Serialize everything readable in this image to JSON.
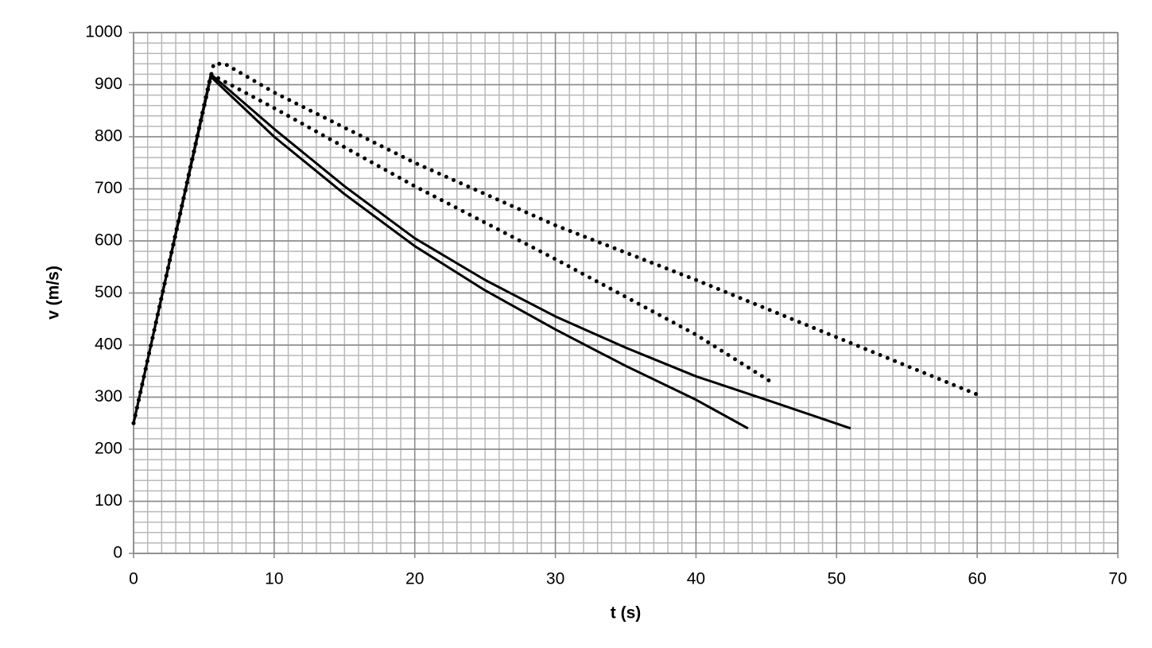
{
  "chart_data": {
    "type": "line",
    "xlabel": "t (s)",
    "ylabel": "v (m/s)",
    "xlim": [
      0,
      70
    ],
    "xticks": [
      0,
      10,
      20,
      30,
      40,
      50,
      60,
      70
    ],
    "ylim": [
      0,
      1000
    ],
    "yticks": [
      0,
      100,
      200,
      300,
      400,
      500,
      600,
      700,
      800,
      900,
      1000
    ],
    "grid": true,
    "minor_grid": {
      "x_step": 1,
      "y_step": 20
    },
    "series": [
      {
        "color": "#000000",
        "style": "solid",
        "x": [
          0,
          5.5,
          10,
          15,
          20,
          25,
          30,
          35,
          40,
          43.7
        ],
        "values": [
          250,
          915,
          800,
          690,
          590,
          505,
          430,
          360,
          295,
          240
        ]
      },
      {
        "color": "#000000",
        "style": "solid",
        "x": [
          0,
          5.5,
          10,
          15,
          20,
          25,
          30,
          35,
          40,
          45,
          51
        ],
        "values": [
          250,
          920,
          815,
          705,
          605,
          525,
          455,
          395,
          340,
          295,
          240
        ]
      },
      {
        "color": "#000000",
        "style": "dotted",
        "x": [
          0,
          5.5,
          10,
          20,
          30,
          40,
          45.6
        ],
        "values": [
          250,
          920,
          855,
          705,
          565,
          420,
          325
        ]
      },
      {
        "color": "#000000",
        "style": "dotted",
        "x": [
          0,
          5.7,
          6.5,
          10,
          20,
          30,
          40,
          50,
          60
        ],
        "values": [
          250,
          940,
          940,
          885,
          750,
          630,
          525,
          415,
          305
        ]
      }
    ]
  }
}
